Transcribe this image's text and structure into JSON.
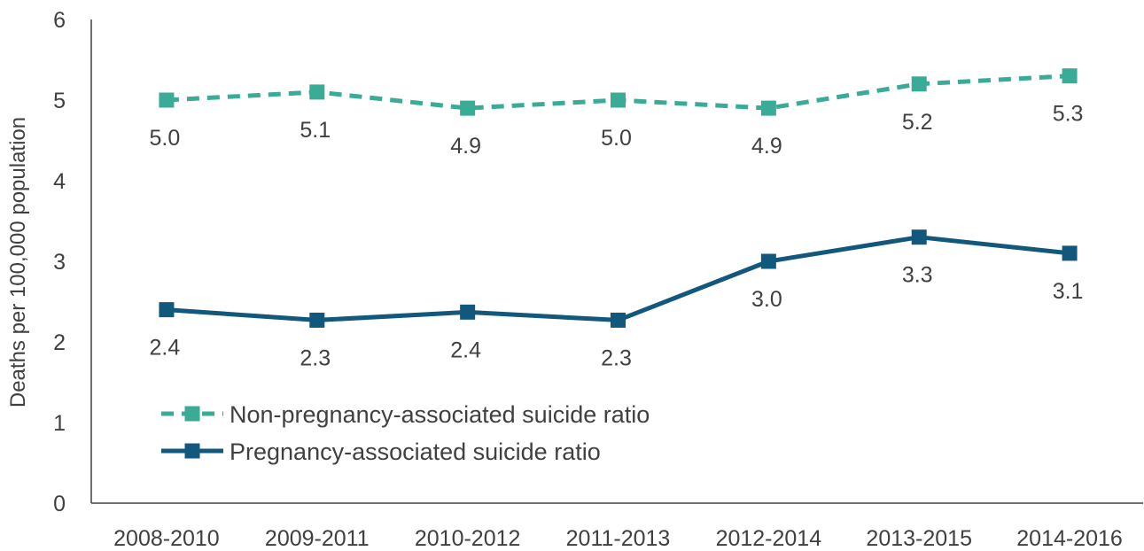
{
  "chart_data": {
    "type": "line",
    "title": "",
    "xlabel": "",
    "ylabel": "Deaths per 100,000 population",
    "ylim": [
      0,
      6
    ],
    "yticks": [
      0,
      1,
      2,
      3,
      4,
      5,
      6
    ],
    "ytick_labels": [
      "0",
      "1",
      "2",
      "3",
      "4",
      "5",
      "6"
    ],
    "grid": false,
    "legend_position": "bottom-left",
    "categories": [
      "2008-2010",
      "2009-2011",
      "2010-2012",
      "2011-2013",
      "2012-2014",
      "2013-2015",
      "2014-2016"
    ],
    "series": [
      {
        "name": "Non-pregnancy-associated suicide ratio",
        "values": [
          5.0,
          5.1,
          4.9,
          5.0,
          4.9,
          5.2,
          5.3
        ],
        "labels": [
          "5.0",
          "5.1",
          "4.9",
          "5.0",
          "4.9",
          "5.2",
          "5.3"
        ],
        "label_position": "below",
        "color": "#3aab96",
        "line_style": "dashed",
        "marker": "square"
      },
      {
        "name": "Pregnancy-associated suicide ratio",
        "values": [
          2.4,
          2.27,
          2.37,
          2.27,
          3.0,
          3.3,
          3.1
        ],
        "labels": [
          "2.4",
          "2.3",
          "2.4",
          "2.3",
          "3.0",
          "3.3",
          "3.1"
        ],
        "label_position": "below",
        "color": "#12587c",
        "line_style": "solid",
        "marker": "square"
      }
    ]
  }
}
